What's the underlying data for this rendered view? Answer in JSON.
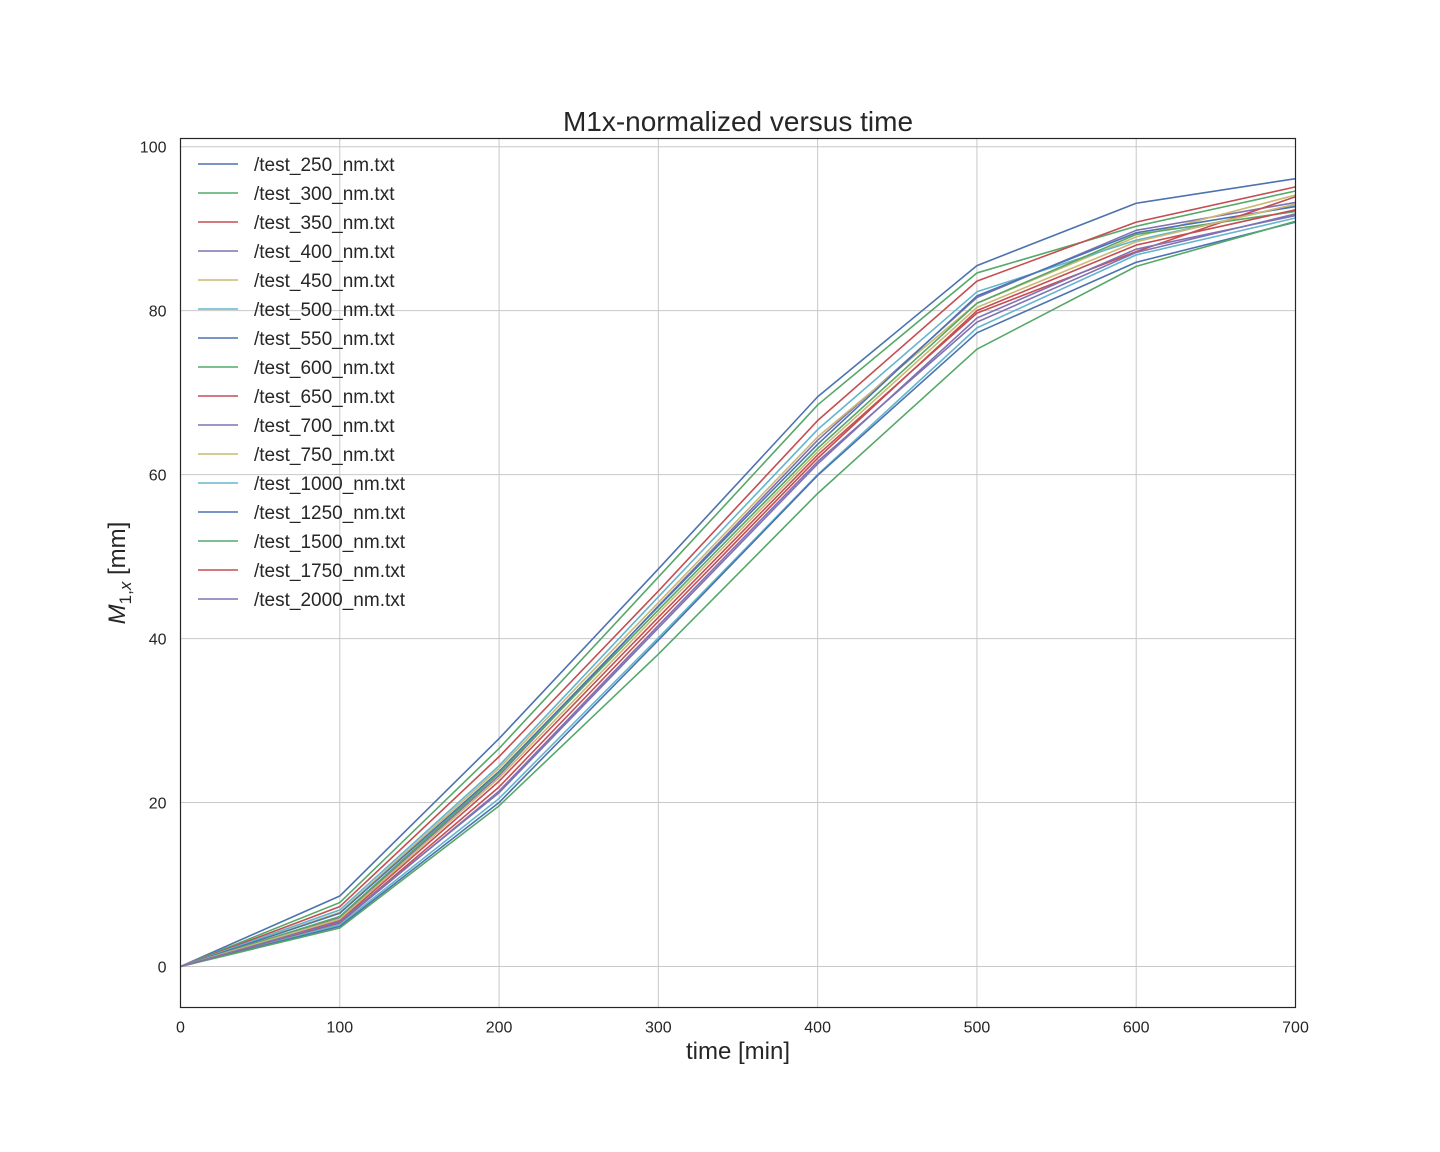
{
  "chart_data": {
    "type": "line",
    "title": "M1x-normalized versus time",
    "xlabel": "time [min]",
    "ylabel": {
      "base": "M",
      "sub": "1,",
      "sub_italic": "x",
      "unit": " [mm]"
    },
    "xlim": [
      0,
      700
    ],
    "ylim": [
      -5,
      101
    ],
    "x_ticks": [
      0,
      100,
      200,
      300,
      400,
      500,
      600,
      700
    ],
    "y_ticks": [
      0,
      20,
      40,
      60,
      80,
      100
    ],
    "grid": true,
    "legend_position": "upper-left",
    "x": [
      0,
      100,
      200,
      300,
      400,
      500,
      600,
      700
    ],
    "series": [
      {
        "name": "/test_250_nm.txt",
        "color": "#4c72b0",
        "values": [
          0,
          8.6,
          27.8,
          48.5,
          69.5,
          85.5,
          93.1,
          96.1
        ]
      },
      {
        "name": "/test_300_nm.txt",
        "color": "#55a868",
        "values": [
          0,
          7.8,
          26.6,
          47.5,
          68.5,
          84.6,
          90.3,
          94.6
        ]
      },
      {
        "name": "/test_350_nm.txt",
        "color": "#c44e52",
        "values": [
          0,
          7.3,
          25.6,
          45.8,
          66.6,
          83.6,
          90.8,
          95.1
        ]
      },
      {
        "name": "/test_400_nm.txt",
        "color": "#8172b2",
        "values": [
          0,
          6.0,
          23.3,
          44.0,
          64.2,
          81.6,
          89.8,
          93.2
        ]
      },
      {
        "name": "/test_450_nm.txt",
        "color": "#ccb974",
        "values": [
          0,
          6.6,
          24.2,
          44.4,
          64.6,
          80.9,
          89.0,
          94.1
        ]
      },
      {
        "name": "/test_500_nm.txt",
        "color": "#64b5cd",
        "values": [
          0,
          6.9,
          24.5,
          45.1,
          65.5,
          82.3,
          88.6,
          92.9
        ]
      },
      {
        "name": "/test_550_nm.txt",
        "color": "#4c72b0",
        "values": [
          0,
          6.5,
          23.8,
          43.9,
          63.7,
          81.8,
          89.5,
          92.7
        ]
      },
      {
        "name": "/test_600_nm.txt",
        "color": "#55a868",
        "values": [
          0,
          6.1,
          23.6,
          43.5,
          63.2,
          80.9,
          89.3,
          92.1
        ]
      },
      {
        "name": "/test_650_nm.txt",
        "color": "#c44e52",
        "values": [
          0,
          5.6,
          22.6,
          42.6,
          62.4,
          79.7,
          87.2,
          93.9
        ]
      },
      {
        "name": "/test_700_nm.txt",
        "color": "#8172b2",
        "values": [
          0,
          5.3,
          21.4,
          41.6,
          61.6,
          78.6,
          87.1,
          91.8
        ]
      },
      {
        "name": "/test_750_nm.txt",
        "color": "#ccb974",
        "values": [
          0,
          5.8,
          23.0,
          43.1,
          62.8,
          80.4,
          88.4,
          93.0
        ]
      },
      {
        "name": "/test_1000_nm.txt",
        "color": "#64b5cd",
        "values": [
          0,
          5.1,
          20.5,
          40.1,
          60.0,
          77.9,
          86.8,
          91.3
        ]
      },
      {
        "name": "/test_1250_nm.txt",
        "color": "#4c72b0",
        "values": [
          0,
          4.9,
          20.0,
          39.8,
          59.9,
          77.3,
          85.9,
          90.8
        ]
      },
      {
        "name": "/test_1500_nm.txt",
        "color": "#55a868",
        "values": [
          0,
          4.7,
          19.6,
          38.1,
          57.7,
          75.3,
          85.4,
          90.9
        ]
      },
      {
        "name": "/test_1750_nm.txt",
        "color": "#c44e52",
        "values": [
          0,
          5.4,
          21.9,
          42.1,
          62.0,
          80.0,
          88.0,
          92.3
        ]
      },
      {
        "name": "/test_2000_nm.txt",
        "color": "#8172b2",
        "values": [
          0,
          5.5,
          21.2,
          41.3,
          61.3,
          79.1,
          87.5,
          91.6
        ]
      }
    ]
  }
}
